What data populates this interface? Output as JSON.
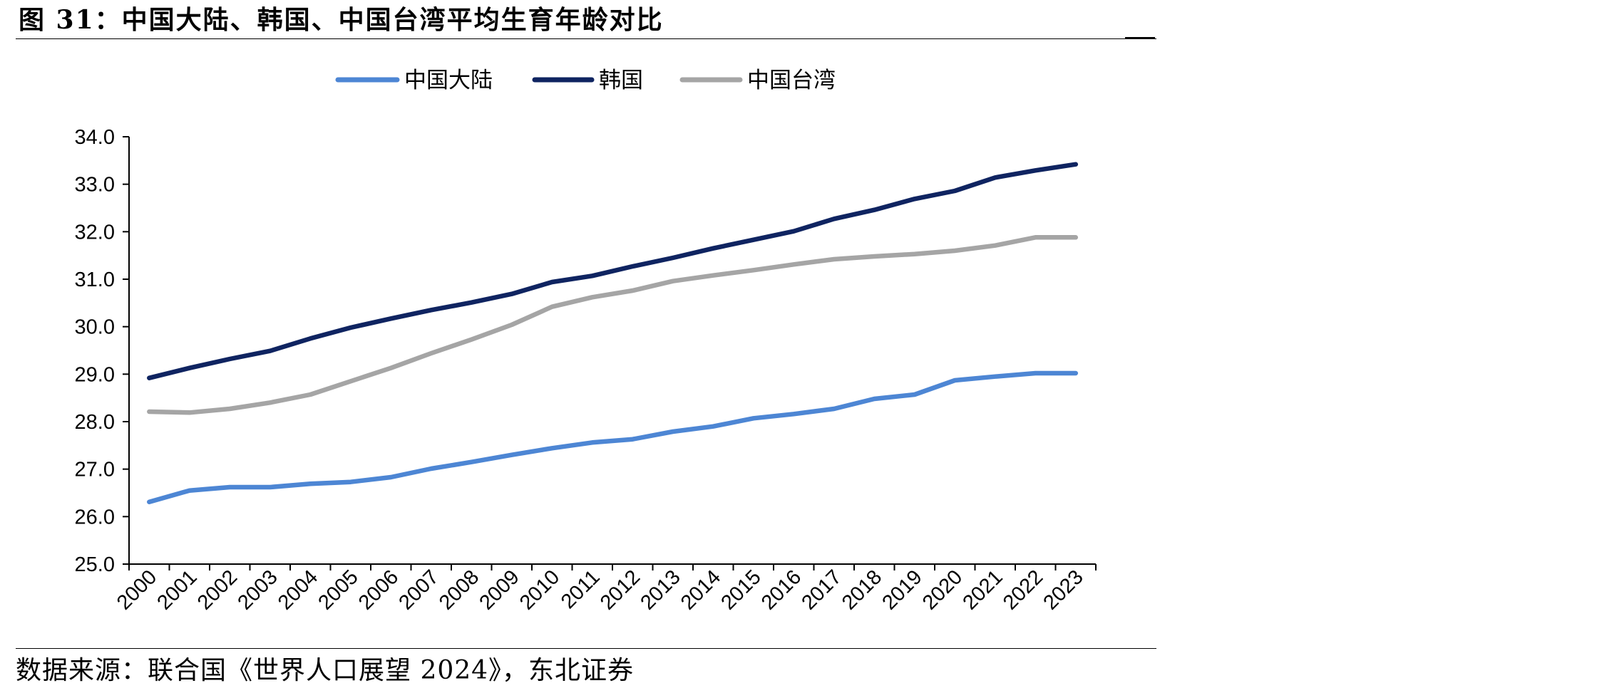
{
  "figure": {
    "title": "图 31：中国大陆、韩国、中国台湾平均生育年龄对比",
    "source": "数据来源：联合国《世界人口展望 2024》，东北证券"
  },
  "chart_data": {
    "type": "line",
    "title": "",
    "xlabel": "",
    "ylabel": "",
    "x": [
      "2000",
      "2001",
      "2002",
      "2003",
      "2004",
      "2005",
      "2006",
      "2007",
      "2008",
      "2009",
      "2010",
      "2011",
      "2012",
      "2013",
      "2014",
      "2015",
      "2016",
      "2017",
      "2018",
      "2019",
      "2020",
      "2021",
      "2022",
      "2023"
    ],
    "ylim": [
      25.0,
      34.0
    ],
    "yticks": [
      "25.0",
      "26.0",
      "27.0",
      "28.0",
      "29.0",
      "30.0",
      "31.0",
      "32.0",
      "33.0",
      "34.0"
    ],
    "grid": false,
    "legend_position": "top-center",
    "series": [
      {
        "name": "中国大陆",
        "color": "#4d86d4",
        "values": [
          26.31,
          26.55,
          26.62,
          26.62,
          26.69,
          26.73,
          26.83,
          27.01,
          27.15,
          27.3,
          27.44,
          27.56,
          27.63,
          27.79,
          27.9,
          28.07,
          28.16,
          28.27,
          28.48,
          28.57,
          28.87,
          28.95,
          29.02,
          29.02
        ]
      },
      {
        "name": "韩国",
        "color": "#0f2461",
        "values": [
          28.92,
          29.13,
          29.32,
          29.49,
          29.75,
          29.98,
          30.17,
          30.35,
          30.51,
          30.69,
          30.94,
          31.07,
          31.27,
          31.45,
          31.65,
          31.83,
          32.01,
          32.27,
          32.46,
          32.69,
          32.86,
          33.14,
          33.29,
          33.42
        ]
      },
      {
        "name": "中国台湾",
        "color": "#a5a5a5",
        "values": [
          28.21,
          28.19,
          28.27,
          28.4,
          28.57,
          28.85,
          29.13,
          29.44,
          29.73,
          30.04,
          30.42,
          30.62,
          30.76,
          30.96,
          31.08,
          31.19,
          31.31,
          31.42,
          31.48,
          31.53,
          31.6,
          31.71,
          31.88,
          31.88
        ]
      }
    ]
  }
}
